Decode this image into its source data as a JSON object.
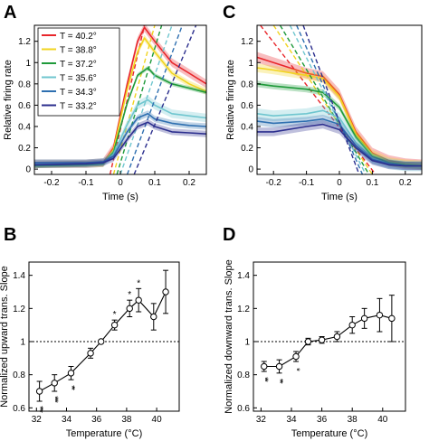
{
  "colors": {
    "40.2": "#e8262b",
    "38.8": "#f1d41f",
    "37.2": "#1f9a3a",
    "35.6": "#6fc6cf",
    "34.3": "#2e6fb0",
    "33.2": "#2c2f8e"
  },
  "chart_data": [
    {
      "panel": "A",
      "type": "line",
      "xlabel": "Time (s)",
      "ylabel": "Relative firing rate",
      "xlim": [
        -0.25,
        0.25
      ],
      "ylim": [
        -0.05,
        1.35
      ],
      "xticks": [
        "-0.2",
        "-0.1",
        "0",
        "0.1",
        "0.2"
      ],
      "yticks": [
        "0",
        "0.2",
        "0.4",
        "0.6",
        "0.8",
        "1",
        "1.2"
      ],
      "legend": {
        "placement": "top-left",
        "entries": [
          "T = 40.2°",
          "T = 38.8°",
          "T = 37.2°",
          "T = 35.6°",
          "T = 34.3°",
          "T = 33.2°"
        ]
      },
      "series": [
        {
          "name": "T = 40.2°",
          "temp": "40.2",
          "x": [
            -0.25,
            -0.1,
            -0.05,
            -0.02,
            0.02,
            0.05,
            0.07,
            0.1,
            0.15,
            0.2,
            0.25
          ],
          "y": [
            0.05,
            0.05,
            0.06,
            0.2,
            0.8,
            1.2,
            1.33,
            1.2,
            1.0,
            0.9,
            0.8
          ],
          "band": 0.04,
          "fit": [
            [
              -0.03,
              -0.05
            ],
            [
              0.07,
              1.35
            ]
          ]
        },
        {
          "name": "T = 38.8°",
          "temp": "38.8",
          "x": [
            -0.25,
            -0.1,
            -0.05,
            -0.02,
            0.02,
            0.05,
            0.07,
            0.1,
            0.15,
            0.2,
            0.25
          ],
          "y": [
            0.04,
            0.05,
            0.05,
            0.18,
            0.75,
            1.1,
            1.23,
            1.1,
            0.9,
            0.8,
            0.73
          ],
          "band": 0.03,
          "fit": [
            [
              -0.02,
              -0.05
            ],
            [
              0.1,
              1.35
            ]
          ]
        },
        {
          "name": "T = 37.2°",
          "temp": "37.2",
          "x": [
            -0.25,
            -0.1,
            -0.05,
            -0.02,
            0.02,
            0.05,
            0.08,
            0.1,
            0.15,
            0.2,
            0.25
          ],
          "y": [
            0.03,
            0.04,
            0.05,
            0.16,
            0.62,
            0.88,
            0.95,
            0.88,
            0.8,
            0.76,
            0.72
          ],
          "band": 0.02,
          "fit": [
            [
              -0.01,
              -0.05
            ],
            [
              0.12,
              1.35
            ]
          ]
        },
        {
          "name": "T = 35.6°",
          "temp": "35.6",
          "x": [
            -0.25,
            -0.1,
            -0.05,
            -0.02,
            0.02,
            0.05,
            0.08,
            0.1,
            0.15,
            0.2,
            0.25
          ],
          "y": [
            0.05,
            0.05,
            0.06,
            0.14,
            0.42,
            0.6,
            0.65,
            0.6,
            0.52,
            0.5,
            0.48
          ],
          "band": 0.04,
          "fit": [
            [
              0.0,
              -0.05
            ],
            [
              0.15,
              1.35
            ]
          ]
        },
        {
          "name": "T = 34.3°",
          "temp": "34.3",
          "x": [
            -0.25,
            -0.1,
            -0.05,
            -0.02,
            0.02,
            0.05,
            0.08,
            0.1,
            0.15,
            0.2,
            0.25
          ],
          "y": [
            0.06,
            0.06,
            0.07,
            0.12,
            0.35,
            0.48,
            0.52,
            0.47,
            0.43,
            0.41,
            0.4
          ],
          "band": 0.03,
          "fit": [
            [
              0.02,
              -0.05
            ],
            [
              0.18,
              1.35
            ]
          ]
        },
        {
          "name": "T = 33.2°",
          "temp": "33.2",
          "x": [
            -0.25,
            -0.1,
            -0.05,
            -0.02,
            0.02,
            0.05,
            0.08,
            0.1,
            0.15,
            0.2,
            0.25
          ],
          "y": [
            0.04,
            0.05,
            0.06,
            0.1,
            0.28,
            0.4,
            0.44,
            0.4,
            0.35,
            0.34,
            0.33
          ],
          "band": 0.03,
          "fit": [
            [
              0.04,
              -0.05
            ],
            [
              0.22,
              1.35
            ]
          ]
        }
      ]
    },
    {
      "panel": "C",
      "type": "line",
      "xlabel": "Time (s)",
      "ylabel": "Relative firing rate",
      "xlim": [
        -0.25,
        0.25
      ],
      "ylim": [
        -0.05,
        1.35
      ],
      "xticks": [
        "-0.2",
        "-0.1",
        "0",
        "0.1",
        "0.2"
      ],
      "yticks": [
        "0",
        "0.2",
        "0.4",
        "0.6",
        "0.8",
        "1",
        "1.2"
      ],
      "series": [
        {
          "temp": "40.2",
          "x": [
            -0.25,
            -0.2,
            -0.1,
            -0.05,
            0.0,
            0.05,
            0.1,
            0.15,
            0.2,
            0.25
          ],
          "y": [
            1.05,
            1.0,
            0.9,
            0.87,
            0.7,
            0.35,
            0.15,
            0.08,
            0.05,
            0.04
          ],
          "band": 0.05,
          "fit": [
            [
              -0.24,
              1.35
            ],
            [
              0.11,
              -0.05
            ]
          ]
        },
        {
          "temp": "38.8",
          "x": [
            -0.25,
            -0.2,
            -0.1,
            -0.05,
            0.0,
            0.05,
            0.1,
            0.15,
            0.2,
            0.25
          ],
          "y": [
            0.95,
            0.93,
            0.88,
            0.85,
            0.68,
            0.33,
            0.14,
            0.07,
            0.05,
            0.04
          ],
          "band": 0.04,
          "fit": [
            [
              -0.2,
              1.35
            ],
            [
              0.1,
              -0.05
            ]
          ]
        },
        {
          "temp": "37.2",
          "x": [
            -0.25,
            -0.2,
            -0.1,
            -0.05,
            0.0,
            0.05,
            0.1,
            0.15,
            0.2,
            0.25
          ],
          "y": [
            0.8,
            0.78,
            0.75,
            0.72,
            0.58,
            0.3,
            0.12,
            0.06,
            0.04,
            0.03
          ],
          "band": 0.03,
          "fit": [
            [
              -0.18,
              1.35
            ],
            [
              0.09,
              -0.05
            ]
          ]
        },
        {
          "temp": "35.6",
          "x": [
            -0.25,
            -0.2,
            -0.1,
            -0.05,
            0.0,
            0.05,
            0.1,
            0.15,
            0.2,
            0.25
          ],
          "y": [
            0.52,
            0.5,
            0.52,
            0.55,
            0.48,
            0.25,
            0.1,
            0.05,
            0.03,
            0.03
          ],
          "band": 0.05,
          "fit": [
            [
              -0.15,
              1.35
            ],
            [
              0.08,
              -0.05
            ]
          ]
        },
        {
          "temp": "34.3",
          "x": [
            -0.25,
            -0.2,
            -0.1,
            -0.05,
            0.0,
            0.05,
            0.1,
            0.15,
            0.2,
            0.25
          ],
          "y": [
            0.45,
            0.43,
            0.45,
            0.47,
            0.42,
            0.22,
            0.09,
            0.05,
            0.03,
            0.03
          ],
          "band": 0.04,
          "fit": [
            [
              -0.13,
              1.35
            ],
            [
              0.07,
              -0.05
            ]
          ]
        },
        {
          "temp": "33.2",
          "x": [
            -0.25,
            -0.2,
            -0.1,
            -0.05,
            0.0,
            0.05,
            0.1,
            0.15,
            0.2,
            0.25
          ],
          "y": [
            0.35,
            0.35,
            0.4,
            0.42,
            0.37,
            0.2,
            0.08,
            0.04,
            0.03,
            0.03
          ],
          "band": 0.04,
          "fit": [
            [
              -0.11,
              1.35
            ],
            [
              0.06,
              -0.05
            ]
          ]
        }
      ]
    },
    {
      "panel": "B",
      "type": "scatter",
      "xlabel": "Temperature (°C)",
      "ylabel": "Normalized upward trans. Slope",
      "xlim": [
        31.5,
        41.5
      ],
      "ylim": [
        0.58,
        1.48
      ],
      "xticks": [
        "32",
        "34",
        "36",
        "38",
        "40"
      ],
      "yticks": [
        "0.6",
        "0.8",
        "1",
        "1.2",
        "1.4"
      ],
      "refline": 1,
      "x": [
        32.2,
        33.2,
        34.3,
        35.6,
        36.3,
        37.2,
        38.2,
        38.8,
        39.8,
        40.6
      ],
      "y": [
        0.7,
        0.75,
        0.81,
        0.93,
        1.0,
        1.1,
        1.2,
        1.25,
        1.15,
        1.3
      ],
      "err": [
        0.06,
        0.05,
        0.04,
        0.03,
        0.0,
        0.03,
        0.05,
        0.07,
        0.08,
        0.13
      ],
      "stars": [
        "***",
        "***",
        "**",
        "",
        "",
        "*",
        "*",
        "*",
        "",
        ""
      ]
    },
    {
      "panel": "D",
      "type": "scatter",
      "xlabel": "Temperature (°C)",
      "ylabel": "Normalized downward trans. Slope",
      "xlim": [
        31.5,
        41.5
      ],
      "ylim": [
        0.58,
        1.48
      ],
      "xticks": [
        "32",
        "34",
        "36",
        "38",
        "40"
      ],
      "yticks": [
        "0.6",
        "0.8",
        "1",
        "1.2",
        "1.4"
      ],
      "refline": 1,
      "x": [
        32.2,
        33.2,
        34.3,
        35.1,
        36.0,
        37.0,
        38.0,
        38.8,
        39.8,
        40.6
      ],
      "y": [
        0.85,
        0.85,
        0.91,
        1.0,
        1.01,
        1.03,
        1.1,
        1.14,
        1.16,
        1.14
      ],
      "err": [
        0.03,
        0.04,
        0.03,
        0.02,
        0.02,
        0.03,
        0.05,
        0.06,
        0.1,
        0.14
      ],
      "stars": [
        "**",
        "**",
        "*",
        "",
        "",
        "",
        "",
        "",
        "",
        ""
      ]
    }
  ]
}
